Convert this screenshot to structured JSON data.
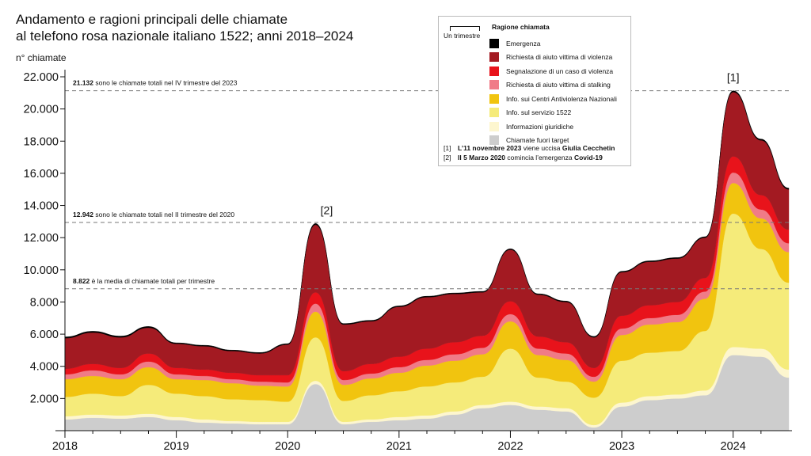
{
  "title_line1": "Andamento e ragioni principali delle chiamate",
  "title_line2": "al telefono rosa nazionale italiano 1522; anni 2018–2024",
  "colors": {
    "emergenza": "#000000",
    "aiuto_violenza": "#a31a22",
    "segnalazione": "#e8131b",
    "stalking": "#f07b87",
    "centri": "#f1c40f",
    "servizio": "#f5eb7a",
    "giuridiche": "#fdf6cf",
    "fuori_target": "#cdcdcd",
    "reference_line": "#777777"
  },
  "legend": {
    "scale_label": "Un trimestre",
    "title": "Ragione chiamata",
    "items": [
      {
        "label": "Emergenza",
        "color": "#000000"
      },
      {
        "label": "Richiesta di aiuto vittima di violenza",
        "color": "#a31a22"
      },
      {
        "label": "Segnalazione di un caso di violenza",
        "color": "#e8131b"
      },
      {
        "label": "Richiesta di aiuto vittima di stalking",
        "color": "#f07b87"
      },
      {
        "label": "Info. sui Centri Antiviolenza Nazionali",
        "color": "#f1c40f"
      },
      {
        "label": "Info. sul servizio 1522",
        "color": "#f5eb7a"
      },
      {
        "label": "Informazioni giuridiche",
        "color": "#fdf6cf"
      },
      {
        "label": "Chiamate fuori target",
        "color": "#cdcdcd"
      }
    ],
    "notes": [
      {
        "mark": "[1]",
        "pre": "L’11 novembre 2023",
        "mid": " viene uccisa ",
        "bold": "Giulia Cecchetin",
        "post": ""
      },
      {
        "mark": "[2]",
        "pre": "Il 5 Marzo 2020",
        "mid": " comincia l’emergenza ",
        "bold": "Covid-19",
        "post": ""
      }
    ]
  },
  "chart_data": {
    "type": "area",
    "stacked": true,
    "ylabel": "n° chiamate",
    "xlabel": "",
    "ylim": [
      0,
      22000
    ],
    "xlim": [
      2018,
      2024.5
    ],
    "yticks": [
      2000,
      4000,
      6000,
      8000,
      10000,
      12000,
      14000,
      16000,
      18000,
      20000,
      22000
    ],
    "ytick_labels": [
      "2.000",
      "4.000",
      "6.000",
      "8.000",
      "10.000",
      "12.000",
      "14.000",
      "16.000",
      "18.000",
      "20.000",
      "22.000"
    ],
    "xticks": [
      2018,
      2019,
      2020,
      2021,
      2022,
      2023,
      2024
    ],
    "xtick_labels": [
      "2018",
      "2019",
      "2020",
      "2021",
      "2022",
      "2023",
      "2024"
    ],
    "x": [
      2018.0,
      2018.25,
      2018.5,
      2018.75,
      2019.0,
      2019.25,
      2019.5,
      2019.75,
      2020.0,
      2020.25,
      2020.5,
      2020.75,
      2021.0,
      2021.25,
      2021.5,
      2021.75,
      2022.0,
      2022.25,
      2022.5,
      2022.75,
      2023.0,
      2023.25,
      2023.5,
      2023.75,
      2024.0,
      2024.25,
      2024.5
    ],
    "series": [
      {
        "name": "Chiamate fuori target",
        "color": "#cdcdcd",
        "values": [
          700,
          800,
          750,
          850,
          650,
          500,
          450,
          400,
          400,
          2900,
          400,
          550,
          650,
          750,
          1000,
          1400,
          1600,
          1300,
          1200,
          200,
          1500,
          1900,
          2000,
          2200,
          4700,
          4600,
          3300
        ]
      },
      {
        "name": "Informazioni giuridiche",
        "color": "#fdf6cf",
        "values": [
          200,
          200,
          200,
          200,
          200,
          200,
          150,
          150,
          150,
          200,
          150,
          150,
          200,
          200,
          200,
          200,
          200,
          200,
          200,
          150,
          250,
          250,
          250,
          300,
          500,
          500,
          500
        ]
      },
      {
        "name": "Info. sul servizio 1522",
        "color": "#f5eb7a",
        "values": [
          1200,
          1300,
          1200,
          1800,
          1450,
          1450,
          1350,
          1350,
          1250,
          2700,
          1300,
          1500,
          1600,
          1800,
          1800,
          1750,
          3300,
          1800,
          1650,
          1700,
          2600,
          2700,
          2700,
          3700,
          8300,
          6200,
          5400
        ]
      },
      {
        "name": "Info. sui Centri Antiviolenza Nazionali",
        "color": "#f1c40f",
        "values": [
          1100,
          1100,
          1050,
          1100,
          900,
          1000,
          1000,
          900,
          950,
          1600,
          1000,
          1050,
          1150,
          1300,
          1350,
          1400,
          1700,
          1400,
          1350,
          1000,
          1600,
          1750,
          1800,
          2000,
          1900,
          1900,
          1900
        ]
      },
      {
        "name": "Richiesta di aiuto vittima di stalking",
        "color": "#f07b87",
        "values": [
          300,
          350,
          300,
          350,
          300,
          250,
          250,
          250,
          250,
          500,
          300,
          300,
          350,
          350,
          400,
          400,
          450,
          400,
          400,
          300,
          400,
          400,
          450,
          450,
          650,
          550,
          550
        ]
      },
      {
        "name": "Segnalazione di un caso di violenza",
        "color": "#e8131b",
        "values": [
          350,
          400,
          400,
          500,
          400,
          400,
          400,
          400,
          450,
          700,
          550,
          600,
          650,
          700,
          750,
          750,
          800,
          750,
          700,
          550,
          800,
          800,
          800,
          850,
          1000,
          900,
          850
        ]
      },
      {
        "name": "Richiesta di aiuto vittima di violenza",
        "color": "#a31a22",
        "values": [
          1900,
          1950,
          1900,
          1600,
          1500,
          1450,
          1350,
          1350,
          1900,
          4200,
          2900,
          2650,
          3100,
          3200,
          3000,
          2700,
          3200,
          2600,
          2500,
          1900,
          2700,
          2700,
          2700,
          2500,
          4000,
          3400,
          2500
        ]
      },
      {
        "name": "Emergenza",
        "color": "#000000",
        "values": [
          80,
          80,
          80,
          80,
          60,
          60,
          60,
          60,
          60,
          80,
          60,
          60,
          60,
          60,
          60,
          60,
          60,
          60,
          60,
          60,
          60,
          60,
          60,
          60,
          80,
          80,
          80
        ]
      }
    ],
    "reference_lines": [
      {
        "value": 21132,
        "value_label": "21.132",
        "text": " sono le chiamate totali nel IV trimestre del 2023"
      },
      {
        "value": 12942,
        "value_label": "12.942",
        "text": " sono le chiamate totali nel II trimestre del 2020"
      },
      {
        "value": 8822,
        "value_label": "8.822",
        "text": " è la media di chiamate totali per trimestre"
      }
    ],
    "annotations": [
      {
        "text": "[1]",
        "x": 2024.0
      },
      {
        "text": "[2]",
        "x": 2020.35
      }
    ]
  }
}
